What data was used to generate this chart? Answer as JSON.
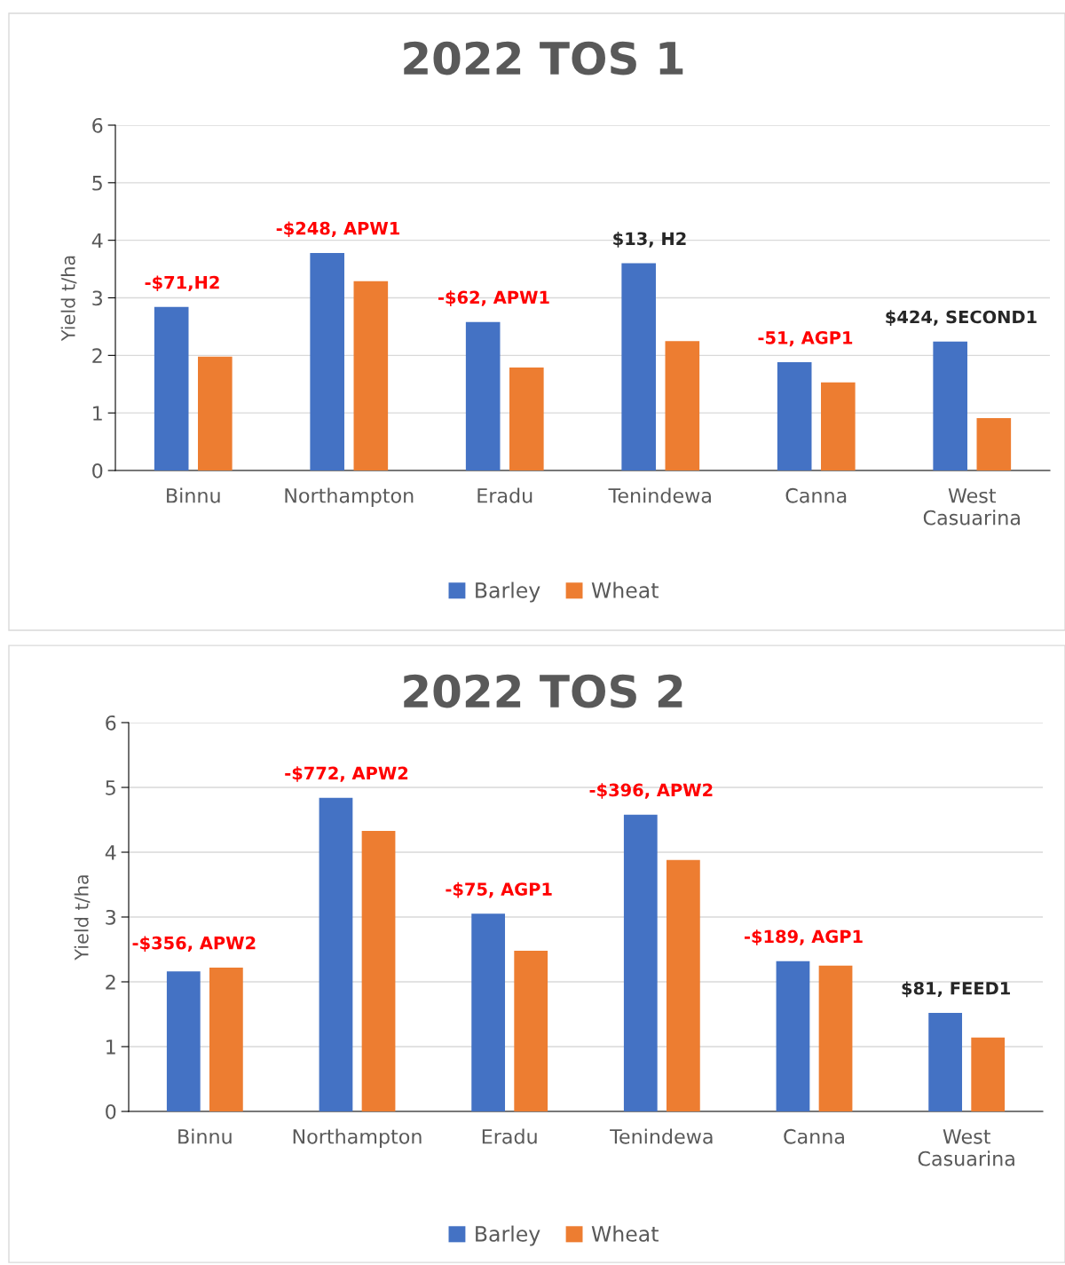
{
  "chart_data": [
    {
      "type": "bar",
      "title": "2022 TOS 1",
      "ylabel": "Yield t/ha",
      "categories": [
        "Binnu",
        "Northampton",
        "Eradu",
        "Tenindewa",
        "Canna",
        "West\nCasuarina"
      ],
      "series": [
        {
          "name": "Barley",
          "color": "#4472c4",
          "values": [
            2.84,
            3.78,
            2.58,
            3.6,
            1.88,
            2.24
          ]
        },
        {
          "name": "Wheat",
          "color": "#ed7d31",
          "values": [
            1.98,
            3.29,
            1.79,
            2.25,
            1.53,
            0.91
          ]
        }
      ],
      "ylim": [
        0,
        6
      ],
      "yticks": [
        0,
        1,
        2,
        3,
        4,
        5,
        6
      ],
      "grid": "y",
      "legend": "bottom",
      "annotations": [
        "-$71,H2",
        "-$248, APW1",
        "-$62, APW1",
        "$13, H2",
        "-51, AGP1",
        "$424, SECOND1"
      ]
    },
    {
      "type": "bar",
      "title": "2022 TOS 2",
      "ylabel": "Yield t/ha",
      "categories": [
        "Binnu",
        "Northampton",
        "Eradu",
        "Tenindewa",
        "Canna",
        "West\nCasuarina"
      ],
      "series": [
        {
          "name": "Barley",
          "color": "#4472c4",
          "values": [
            2.16,
            4.84,
            3.05,
            4.58,
            2.32,
            1.52
          ]
        },
        {
          "name": "Wheat",
          "color": "#ed7d31",
          "values": [
            2.22,
            4.33,
            2.48,
            3.88,
            2.25,
            1.14
          ]
        }
      ],
      "ylim": [
        0,
        6
      ],
      "yticks": [
        0,
        1,
        2,
        3,
        4,
        5,
        6
      ],
      "grid": "y",
      "legend": "bottom",
      "annotations": [
        "-$356, APW2",
        "-$772, APW2",
        "-$75, AGP1",
        "-$396, APW2",
        "-$189, AGP1",
        "$81, FEED1"
      ]
    }
  ]
}
